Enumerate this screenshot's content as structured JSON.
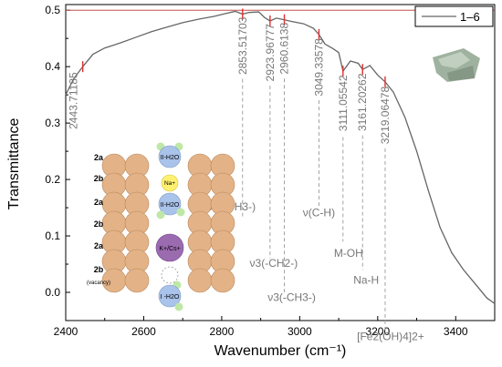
{
  "chart_data": {
    "type": "line",
    "title": "",
    "xlabel": "Wavenumber (cm⁻¹)",
    "ylabel": "Transmittance",
    "xlim": [
      2400,
      3500
    ],
    "ylim": [
      -0.05,
      0.51
    ],
    "x_ticks": [
      "2400",
      "2600",
      "2800",
      "3000",
      "3200",
      "3400"
    ],
    "y_ticks": [
      "0.0",
      "0.1",
      "0.2",
      "0.3",
      "0.4",
      "0.5"
    ],
    "legend": {
      "placement": "top-right",
      "label": "1–6"
    },
    "series": [
      {
        "name": "1–6",
        "color": "#666666",
        "x": [
          2400,
          2420,
          2443.7,
          2470,
          2500,
          2540,
          2580,
          2620,
          2660,
          2700,
          2740,
          2780,
          2810,
          2835,
          2853.5,
          2870,
          2895,
          2910,
          2923.9,
          2940,
          2960.6,
          2980,
          3010,
          3035,
          3049.3,
          3065,
          3085,
          3100,
          3111.1,
          3130,
          3150,
          3161.2,
          3180,
          3200,
          3219.1,
          3240,
          3270,
          3300,
          3330,
          3360,
          3390,
          3420,
          3450,
          3480,
          3500
        ],
        "y": [
          0.35,
          0.378,
          0.4,
          0.422,
          0.433,
          0.442,
          0.452,
          0.462,
          0.47,
          0.478,
          0.484,
          0.489,
          0.494,
          0.498,
          0.493,
          0.496,
          0.497,
          0.487,
          0.481,
          0.486,
          0.483,
          0.48,
          0.476,
          0.468,
          0.457,
          0.44,
          0.432,
          0.425,
          0.392,
          0.41,
          0.406,
          0.395,
          0.402,
          0.385,
          0.373,
          0.355,
          0.31,
          0.25,
          0.18,
          0.115,
          0.07,
          0.04,
          0.015,
          -0.01,
          -0.02
        ]
      }
    ],
    "reference_line": {
      "y": 0.5,
      "color": "#c0504d"
    },
    "annotations": [
      {
        "x": 2443.71185,
        "y": 0.4,
        "label": "2443.71185"
      },
      {
        "x": 2853.51703,
        "y": 0.493,
        "label": "2853.51703",
        "assignment": "ν1(-CH3-)"
      },
      {
        "x": 2923.96777,
        "y": 0.481,
        "label": "2923.96777",
        "assignment": "ν3(-CH2-)"
      },
      {
        "x": 2960.6138,
        "y": 0.483,
        "label": "2960.6138",
        "assignment": "ν3(-CH3-)"
      },
      {
        "x": 3049.33578,
        "y": 0.457,
        "label": "3049.33578",
        "assignment": "ν(C-H)"
      },
      {
        "x": 3111.05542,
        "y": 0.392,
        "label": "3111.05542",
        "assignment": "M-OH"
      },
      {
        "x": 3161.20262,
        "y": 0.395,
        "label": "3161.20262",
        "assignment": "Na-H"
      },
      {
        "x": 3219.06478,
        "y": 0.373,
        "label": "3219.06478",
        "assignment": "[Fe2(OH)4]2+"
      }
    ],
    "grid": false
  },
  "inset": {
    "layer_labels": [
      "2a",
      "2b",
      "2a",
      "2b",
      "2a",
      "2b"
    ],
    "vacancy_note": "(vacancy)",
    "species": [
      "II-H2O",
      "Na+",
      "II-H2O",
      "K+/Cs+",
      "I -H2O"
    ],
    "colors": {
      "octahedra": "#e3b287",
      "water": "#a9c3ea",
      "sodium": "#fff170",
      "potassium": "#9b6bb0",
      "hydrogen": "#bfe8a6"
    }
  }
}
